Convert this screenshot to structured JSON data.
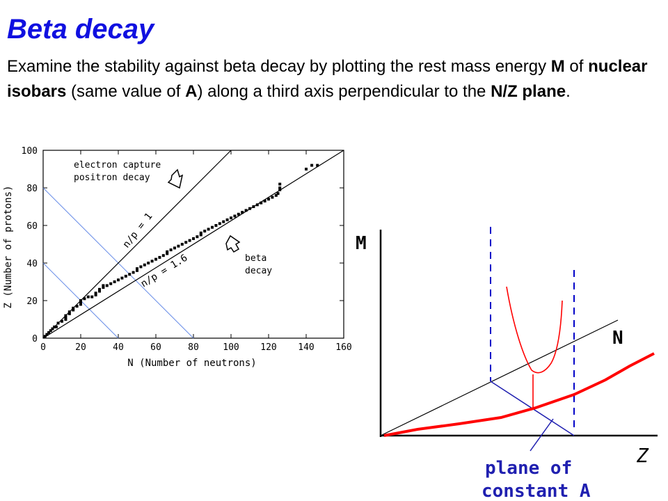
{
  "slide": {
    "title": "Beta decay",
    "intro": {
      "t1": "Examine the stability against beta decay by plotting the rest mass energy ",
      "b1": "M",
      "t2": " of ",
      "b2": "nuclear isobars",
      "t3": " (same value of ",
      "b3": "A",
      "t4": ") along a third axis perpendicular to the ",
      "b4": "N/Z plane",
      "t5": "."
    }
  },
  "chart_data": {
    "type": "scatter",
    "xlabel": "N (Number of neutrons)",
    "ylabel": "Z (Number of protons)",
    "xlim": [
      0,
      160
    ],
    "ylim": [
      0,
      100
    ],
    "xticks": [
      0,
      20,
      40,
      60,
      80,
      100,
      120,
      140,
      160
    ],
    "yticks": [
      0,
      20,
      40,
      60,
      80,
      100
    ],
    "grid": false,
    "lines": [
      {
        "label": "n/p = 1",
        "slope": 1
      },
      {
        "label": "n/p = 1.6",
        "slope": 0.625
      }
    ],
    "isobar_lines": [
      {
        "from": [
          0,
          80
        ],
        "to": [
          80,
          0
        ]
      },
      {
        "from": [
          0,
          40
        ],
        "to": [
          40,
          0
        ]
      }
    ],
    "annotations": {
      "ec_line1": "electron capture",
      "ec_line2": "positron decay",
      "beta_line1": "beta",
      "beta_line2": "decay"
    },
    "stable_nuclei": [
      [
        1,
        1
      ],
      [
        2,
        2
      ],
      [
        3,
        3
      ],
      [
        4,
        4
      ],
      [
        5,
        5
      ],
      [
        6,
        6
      ],
      [
        7,
        6
      ],
      [
        8,
        8
      ],
      [
        10,
        9
      ],
      [
        12,
        10
      ],
      [
        12,
        11
      ],
      [
        12,
        12
      ],
      [
        14,
        13
      ],
      [
        14,
        14
      ],
      [
        16,
        15
      ],
      [
        16,
        16
      ],
      [
        18,
        17
      ],
      [
        20,
        18
      ],
      [
        20,
        19
      ],
      [
        20,
        20
      ],
      [
        22,
        21
      ],
      [
        24,
        22
      ],
      [
        26,
        22
      ],
      [
        28,
        23
      ],
      [
        28,
        24
      ],
      [
        30,
        25
      ],
      [
        30,
        26
      ],
      [
        32,
        27
      ],
      [
        32,
        28
      ],
      [
        34,
        28
      ],
      [
        36,
        29
      ],
      [
        38,
        30
      ],
      [
        40,
        31
      ],
      [
        42,
        32
      ],
      [
        44,
        33
      ],
      [
        46,
        34
      ],
      [
        48,
        35
      ],
      [
        50,
        36
      ],
      [
        50,
        37
      ],
      [
        52,
        38
      ],
      [
        54,
        39
      ],
      [
        56,
        40
      ],
      [
        58,
        41
      ],
      [
        60,
        42
      ],
      [
        62,
        43
      ],
      [
        64,
        44
      ],
      [
        66,
        45
      ],
      [
        66,
        46
      ],
      [
        68,
        47
      ],
      [
        70,
        48
      ],
      [
        72,
        49
      ],
      [
        74,
        50
      ],
      [
        76,
        51
      ],
      [
        78,
        52
      ],
      [
        80,
        53
      ],
      [
        82,
        54
      ],
      [
        84,
        55
      ],
      [
        84,
        56
      ],
      [
        86,
        57
      ],
      [
        88,
        58
      ],
      [
        90,
        59
      ],
      [
        92,
        60
      ],
      [
        94,
        61
      ],
      [
        96,
        62
      ],
      [
        98,
        63
      ],
      [
        100,
        64
      ],
      [
        102,
        65
      ],
      [
        104,
        66
      ],
      [
        106,
        67
      ],
      [
        108,
        68
      ],
      [
        110,
        69
      ],
      [
        112,
        70
      ],
      [
        114,
        71
      ],
      [
        116,
        72
      ],
      [
        118,
        73
      ],
      [
        120,
        74
      ],
      [
        122,
        75
      ],
      [
        124,
        76
      ],
      [
        125,
        77
      ],
      [
        126,
        79
      ],
      [
        126,
        80
      ],
      [
        126,
        82
      ],
      [
        140,
        90
      ],
      [
        143,
        92
      ],
      [
        146,
        92
      ]
    ]
  },
  "diagram": {
    "axis_m": "M",
    "axis_n": "N",
    "axis_z": "Z",
    "caption_line1": "plane of",
    "caption_line2": "constant A"
  }
}
